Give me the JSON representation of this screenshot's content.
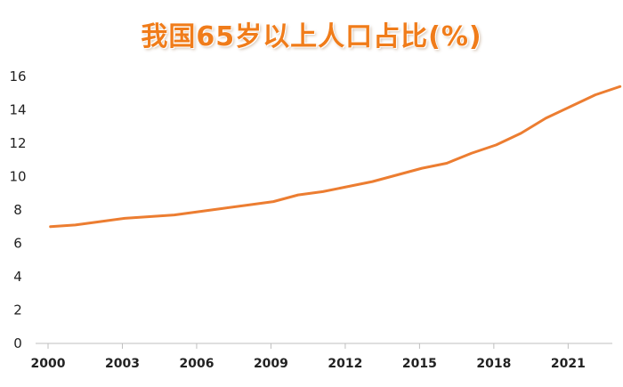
{
  "chart_data": {
    "type": "line",
    "title": "我国65岁以上人口占比(%)",
    "xlabel": "",
    "ylabel": "",
    "xlim": [
      2000,
      2023
    ],
    "ylim": [
      0,
      16
    ],
    "x_ticks": [
      2000,
      2003,
      2006,
      2009,
      2012,
      2015,
      2018,
      2021
    ],
    "y_ticks": [
      0,
      2,
      4,
      6,
      8,
      10,
      12,
      14,
      16
    ],
    "grid": false,
    "legend": "none",
    "series": [
      {
        "name": "65岁以上人口占比",
        "color": "#ec7d31",
        "x": [
          2000,
          2001,
          2002,
          2003,
          2004,
          2005,
          2006,
          2007,
          2008,
          2009,
          2010,
          2011,
          2012,
          2013,
          2014,
          2015,
          2016,
          2017,
          2018,
          2019,
          2020,
          2021,
          2022,
          2023
        ],
        "values": [
          7.0,
          7.1,
          7.3,
          7.5,
          7.6,
          7.7,
          7.9,
          8.1,
          8.3,
          8.5,
          8.9,
          9.1,
          9.4,
          9.7,
          10.1,
          10.5,
          10.8,
          11.4,
          11.9,
          12.6,
          13.5,
          14.2,
          14.9,
          15.4
        ]
      }
    ]
  }
}
